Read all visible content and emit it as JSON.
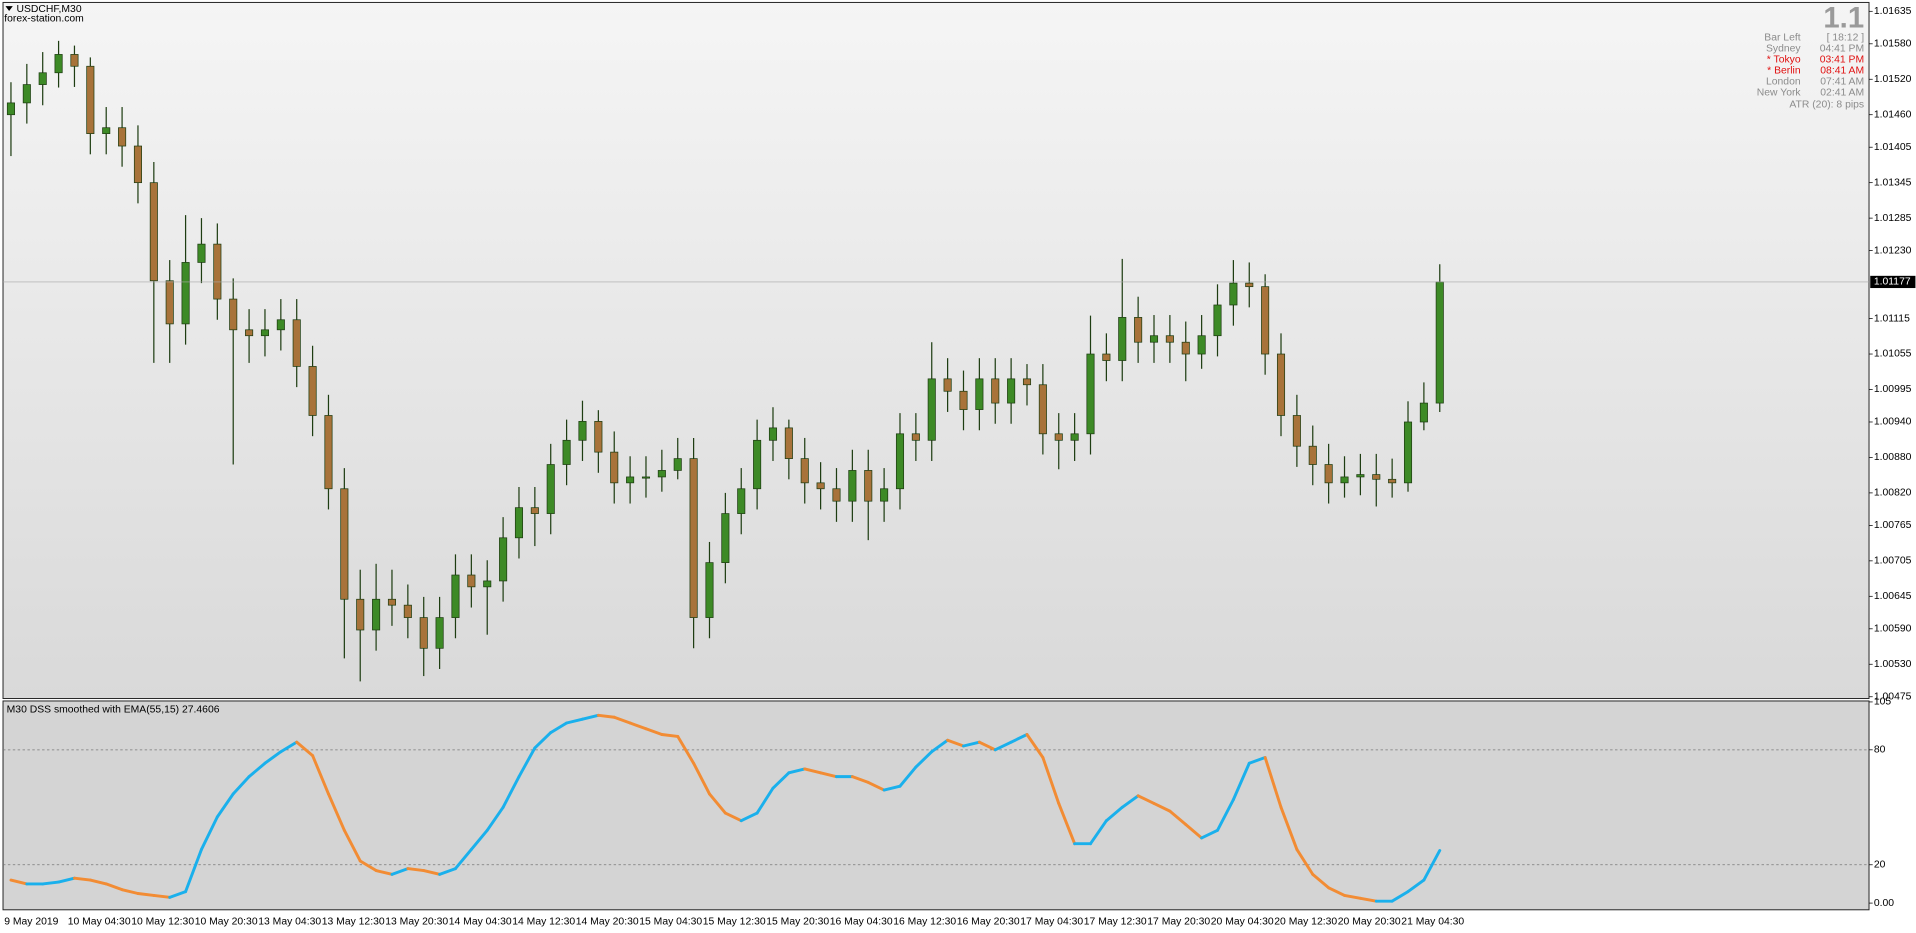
{
  "chart_data": [
    {
      "type": "candlestick",
      "title": "USDCHF,M30",
      "subtitle": "forex-station.com",
      "categories": [
        "9 May 2019",
        null,
        null,
        null,
        "10 May 04:30",
        null,
        null,
        null,
        "10 May 12:30",
        null,
        null,
        null,
        "10 May 20:30",
        null,
        null,
        null,
        "13 May 04:30",
        null,
        null,
        null,
        "13 May 12:30",
        null,
        null,
        null,
        "13 May 20:30",
        null,
        null,
        null,
        "14 May 04:30",
        null,
        null,
        null,
        "14 May 12:30",
        null,
        null,
        null,
        "14 May 20:30",
        null,
        null,
        null,
        "15 May 04:30",
        null,
        null,
        null,
        "15 May 12:30",
        null,
        null,
        null,
        "15 May 20:30",
        null,
        null,
        null,
        "16 May 04:30",
        null,
        null,
        null,
        "16 May 12:30",
        null,
        null,
        null,
        "16 May 20:30",
        null,
        null,
        null,
        "17 May 04:30",
        null,
        null,
        null,
        "17 May 12:30",
        null,
        null,
        null,
        "17 May 20:30",
        null,
        null,
        null,
        "20 May 04:30",
        null,
        null,
        null,
        "20 May 12:30",
        null,
        null,
        null,
        "20 May 20:30",
        null,
        null,
        null,
        "21 May 04:30",
        null,
        null
      ],
      "open": [
        1.0146,
        1.0148,
        1.01511,
        1.01531,
        1.01562,
        1.01542,
        1.01428,
        1.01438,
        1.01407,
        1.01345,
        1.01179,
        1.01106,
        1.0121,
        1.01241,
        1.01148,
        1.01096,
        1.01086,
        1.01096,
        1.01113,
        1.01034,
        1.00951,
        1.00827,
        1.0064,
        1.00588,
        1.0064,
        1.0063,
        1.00609,
        1.00557,
        1.00609,
        1.00681,
        1.00661,
        1.00671,
        1.00744,
        1.00795,
        1.00785,
        1.00868,
        1.00909,
        1.00941,
        1.00889,
        1.00837,
        1.00847,
        1.00847,
        1.00858,
        1.00878,
        1.00609,
        1.00702,
        1.00785,
        1.00827,
        1.00909,
        1.0093,
        1.00878,
        1.00837,
        1.00827,
        1.00806,
        1.00858,
        1.00806,
        1.00827,
        1.0092,
        1.00909,
        1.01013,
        1.00992,
        1.00961,
        1.01013,
        1.00972,
        1.01013,
        1.01003,
        1.0092,
        1.00909,
        1.0092,
        1.01055,
        1.01044,
        1.01117,
        1.01075,
        1.01086,
        1.01075,
        1.01055,
        1.01086,
        1.01138,
        1.01175,
        1.01169,
        1.01055,
        1.00951,
        1.00899,
        1.00868,
        1.00837,
        1.00847,
        1.00851,
        1.00843,
        1.00837,
        1.0094,
        1.00972
      ],
      "high": [
        1.01515,
        1.01546,
        1.01566,
        1.01585,
        1.01577,
        1.01557,
        1.01473,
        1.01473,
        1.01442,
        1.0138,
        1.01214,
        1.0129,
        1.01285,
        1.01276,
        1.01183,
        1.01131,
        1.01131,
        1.01148,
        1.01148,
        1.01069,
        1.00986,
        1.00862,
        1.0069,
        1.007,
        1.0069,
        1.00665,
        1.00644,
        1.00644,
        1.00716,
        1.00716,
        1.00706,
        1.00779,
        1.0083,
        1.0083,
        1.00903,
        1.00944,
        1.00976,
        1.0096,
        1.00924,
        1.00882,
        1.00882,
        1.00893,
        1.00913,
        1.00913,
        1.00737,
        1.0082,
        1.00862,
        1.00944,
        1.00965,
        1.00944,
        1.00913,
        1.00872,
        1.00862,
        1.00893,
        1.00893,
        1.00862,
        1.00955,
        1.00955,
        1.01075,
        1.01048,
        1.01027,
        1.01048,
        1.01048,
        1.01048,
        1.01038,
        1.01038,
        1.00955,
        1.00955,
        1.0112,
        1.0109,
        1.01216,
        1.01152,
        1.01121,
        1.01121,
        1.0111,
        1.01121,
        1.01173,
        1.01214,
        1.0121,
        1.0119,
        1.0109,
        1.00986,
        1.00934,
        1.00903,
        1.00882,
        1.00886,
        1.00886,
        1.00878,
        1.00975,
        1.01007,
        1.01207
      ],
      "low": [
        1.0139,
        1.01445,
        1.01476,
        1.01506,
        1.01507,
        1.01393,
        1.01393,
        1.01372,
        1.0131,
        1.0104,
        1.0104,
        1.01071,
        1.01175,
        1.01113,
        1.00868,
        1.0104,
        1.01051,
        1.01061,
        1.00999,
        1.00916,
        1.00792,
        1.0054,
        1.00501,
        1.00553,
        1.00595,
        1.00574,
        1.0051,
        1.00522,
        1.00574,
        1.00626,
        1.0058,
        1.00636,
        1.00709,
        1.0073,
        1.0075,
        1.00833,
        1.00874,
        1.00854,
        1.00802,
        1.00802,
        1.00812,
        1.00822,
        1.00843,
        1.00557,
        1.00574,
        1.00667,
        1.0075,
        1.00792,
        1.00874,
        1.00843,
        1.00802,
        1.00792,
        1.00771,
        1.00771,
        1.0074,
        1.00771,
        1.00792,
        1.00874,
        1.00874,
        1.00957,
        1.00926,
        1.00926,
        1.00937,
        1.00937,
        1.00968,
        1.00885,
        1.0086,
        1.00874,
        1.00885,
        1.01009,
        1.01009,
        1.0104,
        1.0104,
        1.0104,
        1.01009,
        1.0103,
        1.01051,
        1.01103,
        1.01134,
        1.0102,
        1.00916,
        1.00864,
        1.00833,
        1.00802,
        1.00812,
        1.00816,
        1.00797,
        1.00812,
        1.00822,
        1.00926,
        1.00957
      ],
      "close": [
        1.0148,
        1.01511,
        1.01531,
        1.01562,
        1.01542,
        1.01428,
        1.01438,
        1.01407,
        1.01345,
        1.01179,
        1.01106,
        1.0121,
        1.01241,
        1.01148,
        1.01096,
        1.01086,
        1.01096,
        1.01113,
        1.01034,
        1.00951,
        1.00827,
        1.0064,
        1.00588,
        1.0064,
        1.0063,
        1.00609,
        1.00557,
        1.00609,
        1.00681,
        1.00661,
        1.00671,
        1.00744,
        1.00795,
        1.00785,
        1.00868,
        1.00909,
        1.00941,
        1.00889,
        1.00837,
        1.00847,
        1.00847,
        1.00858,
        1.00878,
        1.00609,
        1.00702,
        1.00785,
        1.00827,
        1.00909,
        1.0093,
        1.00878,
        1.00837,
        1.00827,
        1.00806,
        1.00858,
        1.00806,
        1.00827,
        1.0092,
        1.00909,
        1.01013,
        1.00992,
        1.00961,
        1.01013,
        1.00972,
        1.01013,
        1.01003,
        1.0092,
        1.00909,
        1.0092,
        1.01055,
        1.01044,
        1.01117,
        1.01075,
        1.01086,
        1.01075,
        1.01055,
        1.01086,
        1.01138,
        1.01175,
        1.01169,
        1.01055,
        1.00951,
        1.00899,
        1.00868,
        1.00837,
        1.00847,
        1.00851,
        1.00843,
        1.00837,
        1.0094,
        1.00972,
        1.01177
      ],
      "up_color": "#3d8a26",
      "down_color": "#a8733a",
      "ylim": [
        1.00472,
        1.0165
      ],
      "yticks": [
        1.01635,
        {
          "value": 1.0158,
          "label": "1.01580"
        },
        {
          "value": 1.0152,
          "label": "1.01520"
        },
        {
          "value": 1.0146,
          "label": "1.01460"
        },
        1.01405,
        1.01345,
        1.01285,
        {
          "value": 1.0123,
          "label": "1.01230"
        },
        1.01115,
        1.01055,
        1.00995,
        {
          "value": 1.0094,
          "label": "1.00940"
        },
        {
          "value": 1.0088,
          "label": "1.00880"
        },
        {
          "value": 1.0082,
          "label": "1.00820"
        },
        1.00765,
        1.00705,
        1.00645,
        {
          "value": 1.0059,
          "label": "1.00590"
        },
        {
          "value": 1.0053,
          "label": "1.00530"
        },
        1.00475
      ],
      "last_price_line": true
    },
    {
      "type": "line",
      "title": "M30 DSS smoothed with EMA(55,15)",
      "values": [
        12,
        10,
        10,
        11,
        13,
        12,
        10,
        7,
        5,
        4,
        3,
        6,
        28,
        45,
        57,
        66,
        73,
        79,
        84,
        77,
        57,
        38,
        22,
        17,
        15,
        18,
        17,
        15,
        18,
        28,
        38,
        50,
        66,
        81,
        89,
        94,
        96,
        98,
        97,
        94,
        91,
        88,
        87,
        73,
        57,
        47,
        43,
        47,
        60,
        68,
        70,
        68,
        66,
        66,
        63,
        59,
        61,
        71,
        79,
        85,
        82,
        84,
        80,
        84,
        88,
        76,
        52,
        31,
        31,
        43,
        50,
        56,
        52,
        48,
        41,
        34,
        38,
        54,
        73,
        76,
        50,
        28,
        15,
        8,
        4,
        2.5,
        1,
        1,
        6,
        12,
        27.4606
      ],
      "up_color": "#1ab0ec",
      "down_color": "#f28c34",
      "ylim": [
        -3.5,
        105.5
      ],
      "yticks": [
        105,
        80,
        20,
        {
          "value": 0,
          "label": "0.00"
        }
      ],
      "levels": [
        80,
        20
      ]
    }
  ],
  "overlay": {
    "big_value": 1.1,
    "rows": [
      {
        "label": "Bar Left",
        "time": "[ 18:12 ]",
        "highlight": false
      },
      {
        "label": "Sydney",
        "time": "04:41 PM",
        "highlight": false
      },
      {
        "label": "* Tokyo",
        "time": "03:41 PM",
        "highlight": true
      },
      {
        "label": "* Berlin",
        "time": "08:41 AM",
        "highlight": true
      },
      {
        "label": "London",
        "time": "07:41 AM",
        "highlight": false
      },
      {
        "label": "New York",
        "time": "02:41 AM",
        "highlight": false
      }
    ],
    "atr": "ATR (20): 8 pips"
  }
}
